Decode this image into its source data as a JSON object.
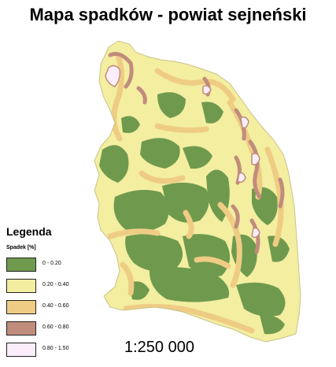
{
  "map": {
    "title": "Mapa spadków - powiat sejneński",
    "scale": "1:250 000"
  },
  "legend": {
    "title": "Legenda",
    "subtitle": "Spadek [%]",
    "classes": [
      {
        "label": "0 - 0.20",
        "color": "#6f9a4e"
      },
      {
        "label": "0.20 - 0.40",
        "color": "#f3eea0"
      },
      {
        "label": "0.40 - 0.60",
        "color": "#efcc84"
      },
      {
        "label": "0.60 - 0.80",
        "color": "#c08c7c"
      },
      {
        "label": "0.80 - 1.50",
        "color": "#fbeefa"
      }
    ]
  }
}
